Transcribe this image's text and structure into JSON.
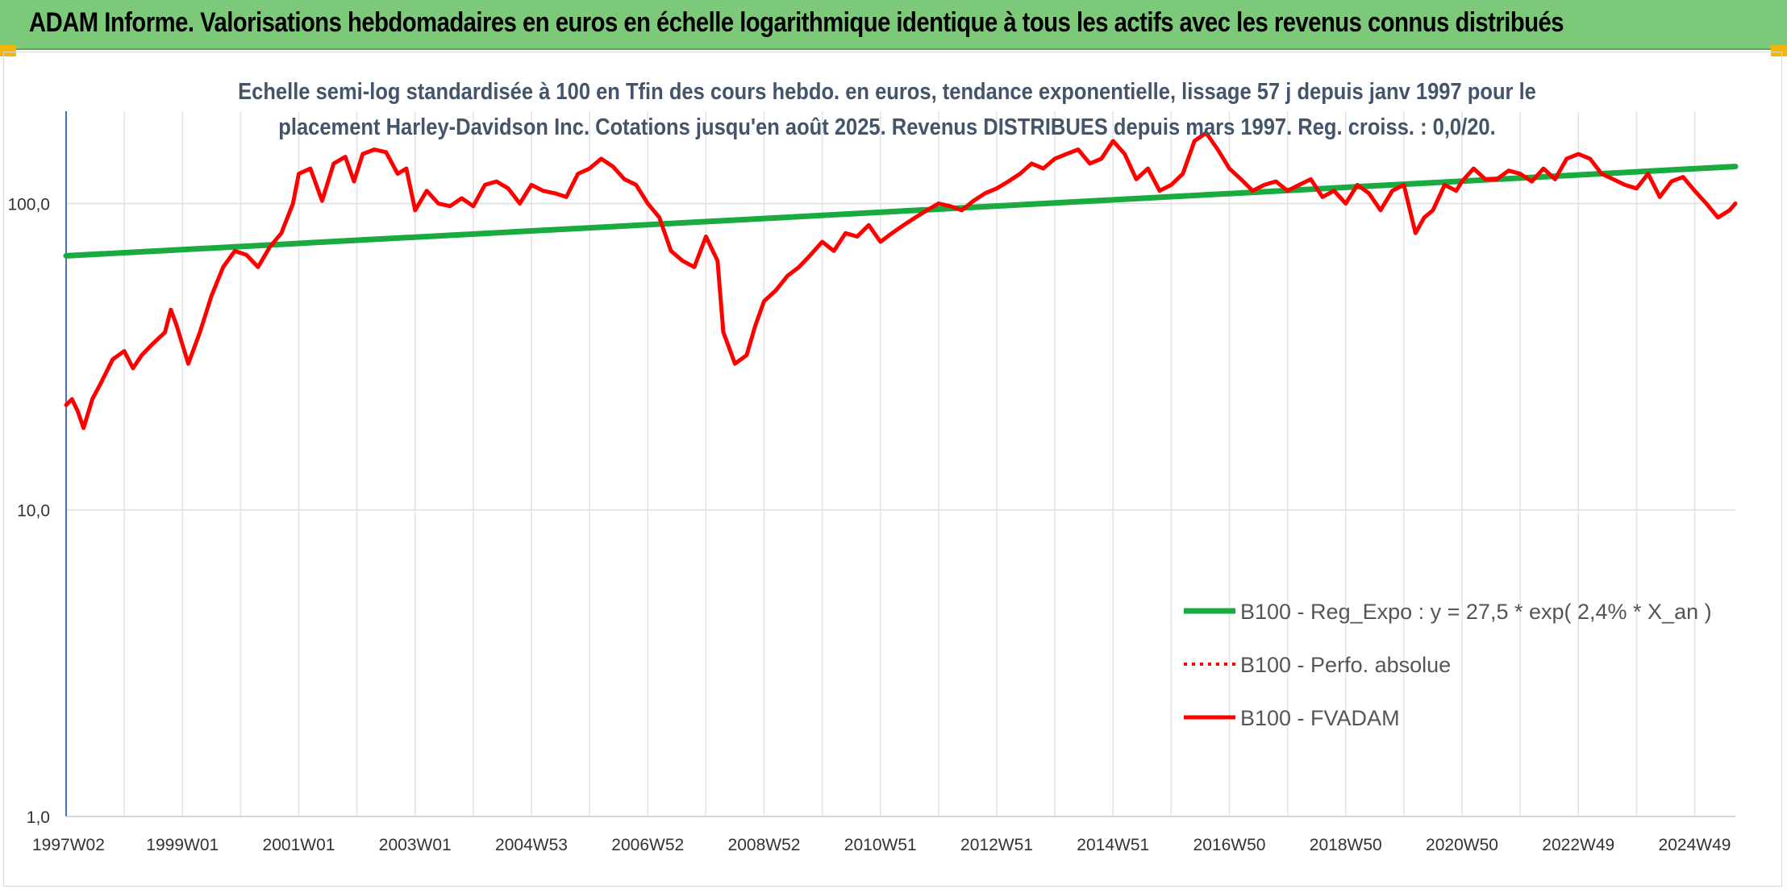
{
  "banner": {
    "title": "ADAM Informe. Valorisations hebdomadaires en euros en échelle logarithmique identique à tous les actifs avec les revenus connus distribués",
    "background": "#7dc97a"
  },
  "chart_data": {
    "type": "line",
    "title": "Echelle semi-log standardisée à 100 en Tfin des cours hebdo. en euros, tendance exponentielle, lissage 57 j depuis janv 1997 pour le placement Harley-Davidson Inc. Cotations jusqu'en août 2025. Revenus DISTRIBUES depuis mars 1997. Reg. croiss. : 0,0/20.",
    "title_lines": [
      "Echelle semi-log standardisée à 100 en Tfin des cours hebdo. en euros, tendance exponentielle, lissage 57 j depuis janv 1997 pour le",
      "placement Harley-Davidson Inc. Cotations jusqu'en août 2025. Revenus DISTRIBUES depuis mars 1997. Reg. croiss. : 0,0/20."
    ],
    "yscale": "log",
    "ylim": [
      1,
      200
    ],
    "yticks": [
      {
        "value": 1,
        "label": "1,0"
      },
      {
        "value": 10,
        "label": "10,0"
      },
      {
        "value": 100,
        "label": "100,0"
      }
    ],
    "xlim": [
      1997.0,
      2025.7
    ],
    "xticks": [
      {
        "value": 1997.0,
        "label": "1997W02"
      },
      {
        "value": 1999.0,
        "label": "1999W01"
      },
      {
        "value": 2001.0,
        "label": "2001W01"
      },
      {
        "value": 2003.0,
        "label": "2003W01"
      },
      {
        "value": 2005.0,
        "label": "2004W53"
      },
      {
        "value": 2007.0,
        "label": "2006W52"
      },
      {
        "value": 2009.0,
        "label": "2008W52"
      },
      {
        "value": 2011.0,
        "label": "2010W51"
      },
      {
        "value": 2013.0,
        "label": "2012W51"
      },
      {
        "value": 2015.0,
        "label": "2014W51"
      },
      {
        "value": 2017.0,
        "label": "2016W50"
      },
      {
        "value": 2019.0,
        "label": "2018W50"
      },
      {
        "value": 2021.0,
        "label": "2020W50"
      },
      {
        "value": 2023.0,
        "label": "2022W49"
      },
      {
        "value": 2025.0,
        "label": "2024W49"
      }
    ],
    "grid": true,
    "legend_position": "bottom-right",
    "series": [
      {
        "name": "B100 - Reg_Expo : y = 27,5 * exp( 2,4% *  X_an )",
        "color": "#1aab40",
        "style": "solid",
        "x": [
          1997.0,
          2025.7
        ],
        "y": [
          67.5,
          132.0
        ]
      },
      {
        "name": "B100 - Perfo. absolue",
        "color": "#ff0000",
        "style": "dotted",
        "x": [],
        "y": []
      },
      {
        "name": "B100 - FVADAM",
        "color": "#ff0000",
        "style": "solid",
        "x": [
          1997.0,
          1997.1,
          1997.2,
          1997.3,
          1997.45,
          1997.6,
          1997.8,
          1998.0,
          1998.15,
          1998.3,
          1998.5,
          1998.7,
          1998.8,
          1998.9,
          1999.1,
          1999.3,
          1999.5,
          1999.7,
          1999.9,
          2000.1,
          2000.3,
          2000.5,
          2000.7,
          2000.9,
          2001.0,
          2001.2,
          2001.4,
          2001.6,
          2001.8,
          2001.95,
          2002.1,
          2002.3,
          2002.5,
          2002.7,
          2002.85,
          2003.0,
          2003.2,
          2003.4,
          2003.6,
          2003.8,
          2004.0,
          2004.2,
          2004.4,
          2004.6,
          2004.8,
          2005.0,
          2005.2,
          2005.4,
          2005.6,
          2005.8,
          2006.0,
          2006.2,
          2006.4,
          2006.6,
          2006.8,
          2007.0,
          2007.2,
          2007.4,
          2007.6,
          2007.8,
          2008.0,
          2008.2,
          2008.3,
          2008.5,
          2008.7,
          2008.85,
          2009.0,
          2009.2,
          2009.4,
          2009.6,
          2009.8,
          2010.0,
          2010.2,
          2010.4,
          2010.6,
          2010.8,
          2011.0,
          2011.2,
          2011.4,
          2011.6,
          2011.8,
          2012.0,
          2012.2,
          2012.4,
          2012.6,
          2012.8,
          2013.0,
          2013.2,
          2013.4,
          2013.6,
          2013.8,
          2014.0,
          2014.2,
          2014.4,
          2014.6,
          2014.8,
          2015.0,
          2015.2,
          2015.4,
          2015.6,
          2015.8,
          2016.0,
          2016.2,
          2016.4,
          2016.6,
          2016.8,
          2017.0,
          2017.2,
          2017.4,
          2017.6,
          2017.8,
          2018.0,
          2018.2,
          2018.4,
          2018.6,
          2018.8,
          2019.0,
          2019.2,
          2019.4,
          2019.6,
          2019.8,
          2020.0,
          2020.2,
          2020.35,
          2020.5,
          2020.7,
          2020.9,
          2021.0,
          2021.2,
          2021.4,
          2021.6,
          2021.8,
          2022.0,
          2022.2,
          2022.4,
          2022.6,
          2022.8,
          2023.0,
          2023.2,
          2023.4,
          2023.6,
          2023.8,
          2024.0,
          2024.2,
          2024.4,
          2024.6,
          2024.8,
          2025.0,
          2025.2,
          2025.4,
          2025.6,
          2025.7
        ],
        "y": [
          22,
          23,
          21,
          18.5,
          23,
          26,
          31,
          33,
          29,
          32,
          35,
          38,
          45,
          40,
          30,
          38,
          50,
          62,
          70,
          68,
          62,
          72,
          80,
          100,
          125,
          130,
          102,
          135,
          142,
          118,
          145,
          150,
          147,
          125,
          130,
          95,
          110,
          100,
          98,
          104,
          98,
          115,
          118,
          112,
          100,
          115,
          110,
          108,
          105,
          125,
          130,
          140,
          132,
          120,
          115,
          100,
          90,
          70,
          65,
          62,
          78,
          65,
          38,
          30,
          32,
          40,
          48,
          52,
          58,
          62,
          68,
          75,
          70,
          80,
          78,
          85,
          75,
          80,
          85,
          90,
          95,
          100,
          98,
          95,
          102,
          108,
          112,
          118,
          125,
          135,
          130,
          140,
          145,
          150,
          135,
          140,
          160,
          145,
          120,
          130,
          110,
          115,
          125,
          160,
          170,
          150,
          130,
          120,
          110,
          115,
          118,
          110,
          115,
          120,
          105,
          110,
          100,
          115,
          108,
          95,
          110,
          115,
          80,
          90,
          95,
          115,
          110,
          118,
          130,
          120,
          120,
          128,
          125,
          118,
          130,
          120,
          140,
          145,
          140,
          125,
          120,
          115,
          112,
          125,
          105,
          118,
          122,
          110,
          100,
          90,
          95,
          100
        ]
      }
    ]
  }
}
